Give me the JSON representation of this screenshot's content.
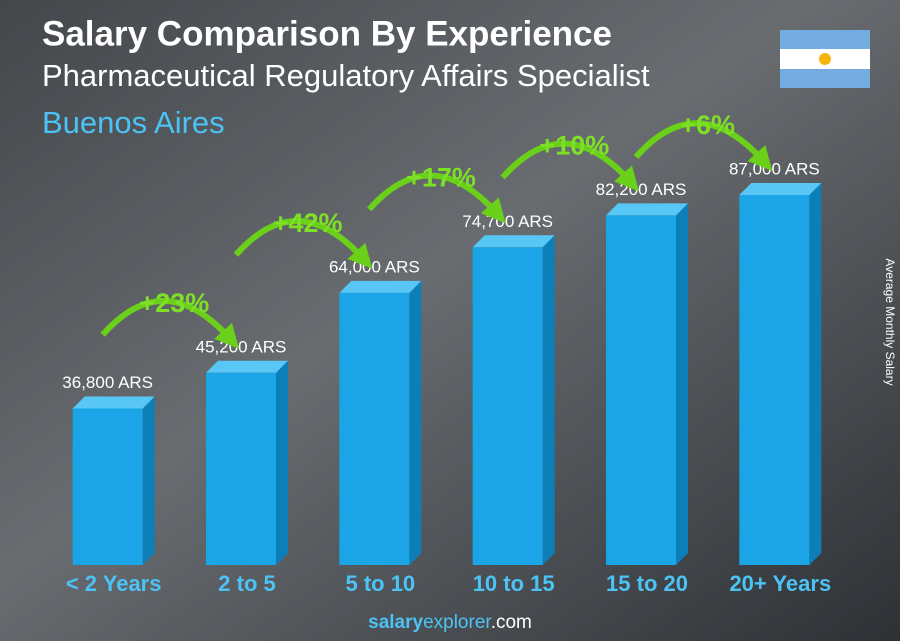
{
  "chart_data": {
    "type": "bar",
    "title": "Salary Comparison By Experience",
    "subtitle": "Pharmaceutical Regulatory Affairs Specialist",
    "location": "Buenos Aires",
    "y_label": "Average Monthly Salary",
    "categories": [
      "< 2 Years",
      "2 to 5",
      "5 to 10",
      "10 to 15",
      "15 to 20",
      "20+ Years"
    ],
    "values": [
      36800,
      45200,
      64000,
      74700,
      82200,
      87000
    ],
    "value_labels": [
      "36,800 ARS",
      "45,200 ARS",
      "64,000 ARS",
      "74,700 ARS",
      "82,200 ARS",
      "87,000 ARS"
    ],
    "changes": [
      "+23%",
      "+42%",
      "+17%",
      "+10%",
      "+6%"
    ],
    "color": "#1ba5e6",
    "footer": {
      "bold": "salary",
      "regular": "explorer",
      "domain": ".com"
    }
  }
}
